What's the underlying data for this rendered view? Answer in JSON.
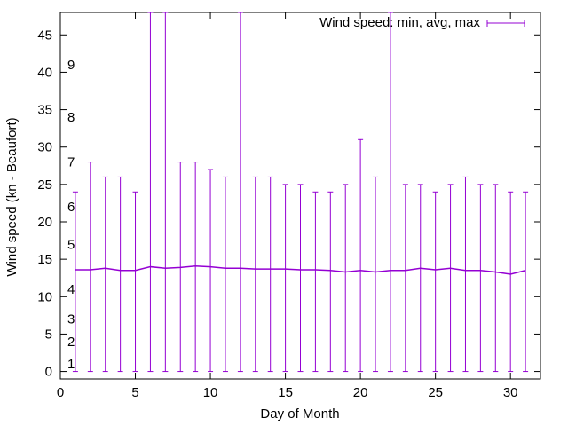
{
  "chart_data": {
    "type": "line",
    "xlabel": "Day of Month",
    "ylabel": "Wind speed (kn - Beaufort)",
    "xlim": [
      0,
      32
    ],
    "ylim": [
      -1,
      48
    ],
    "x_ticks": [
      0,
      5,
      10,
      15,
      20,
      25,
      30
    ],
    "y_ticks": [
      0,
      5,
      10,
      15,
      20,
      25,
      30,
      35,
      40,
      45
    ],
    "grid": false,
    "legend": {
      "position": "top-right",
      "entries": [
        "Wind speed: min, avg, max"
      ]
    },
    "series": [
      {
        "name": "Wind speed: min, avg, max",
        "color": "#9400d3",
        "x": [
          1,
          2,
          3,
          4,
          5,
          6,
          7,
          8,
          9,
          10,
          11,
          12,
          13,
          14,
          15,
          16,
          17,
          18,
          19,
          20,
          21,
          22,
          23,
          24,
          25,
          26,
          27,
          28,
          29,
          30,
          31
        ],
        "min": [
          0,
          0,
          0,
          0,
          0,
          0,
          0,
          0,
          0,
          0,
          0,
          0,
          0,
          0,
          0,
          0,
          0,
          0,
          0,
          0,
          0,
          0,
          0,
          0,
          0,
          0,
          0,
          0,
          0,
          0,
          0
        ],
        "avg": [
          13.6,
          13.6,
          13.8,
          13.5,
          13.5,
          14.0,
          13.8,
          13.9,
          14.1,
          14.0,
          13.8,
          13.8,
          13.7,
          13.7,
          13.7,
          13.6,
          13.6,
          13.5,
          13.3,
          13.5,
          13.3,
          13.5,
          13.5,
          13.8,
          13.6,
          13.8,
          13.5,
          13.5,
          13.3,
          13.0,
          13.5
        ],
        "max": [
          24,
          28,
          26,
          26,
          24,
          48,
          48,
          28,
          28,
          27,
          26,
          48,
          26,
          26,
          25,
          25,
          24,
          24,
          25,
          31,
          26,
          48,
          25,
          25,
          24,
          25,
          26,
          25,
          25,
          24,
          24
        ]
      }
    ],
    "beaufort_labels": [
      {
        "label": "1",
        "value": 1
      },
      {
        "label": "2",
        "value": 4
      },
      {
        "label": "3",
        "value": 7
      },
      {
        "label": "4",
        "value": 11
      },
      {
        "label": "5",
        "value": 17
      },
      {
        "label": "6",
        "value": 22
      },
      {
        "label": "7",
        "value": 28
      },
      {
        "label": "8",
        "value": 34
      },
      {
        "label": "9",
        "value": 41
      }
    ]
  }
}
